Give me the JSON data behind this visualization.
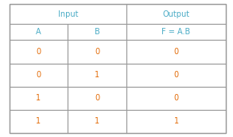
{
  "title_input": "Input",
  "title_output": "Output",
  "col_headers": [
    "A",
    "B",
    "F = A.B"
  ],
  "rows": [
    [
      0,
      0,
      0
    ],
    [
      0,
      1,
      0
    ],
    [
      1,
      0,
      0
    ],
    [
      1,
      1,
      1
    ]
  ],
  "header_color": "#4bacc6",
  "text_color": "#e36c09",
  "grid_color": "#999999",
  "bg_color": "#ffffff"
}
